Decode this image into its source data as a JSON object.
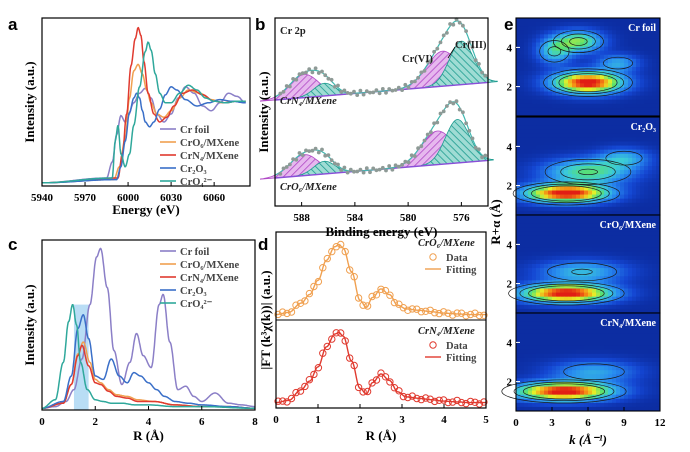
{
  "chart_data": [
    {
      "panel": "a",
      "type": "line",
      "xlabel": "Energy (eV)",
      "ylabel": "Intensity (a.u.)",
      "xlim": [
        5940,
        6085
      ],
      "xticks": [
        5940,
        5970,
        6000,
        6030,
        6060
      ],
      "legend_position": "bottom-right",
      "series": [
        {
          "name": "Cr foil",
          "color": "#8B7FC7",
          "x": [
            5940,
            5985,
            5989,
            5992,
            5995,
            5998,
            6000,
            6004,
            6008,
            6012,
            6016,
            6020,
            6025,
            6030,
            6035,
            6040,
            6046,
            6052,
            6058,
            6064,
            6070,
            6076,
            6082
          ],
          "y": [
            0.02,
            0.05,
            0.15,
            0.32,
            0.44,
            0.4,
            0.44,
            0.52,
            0.58,
            0.61,
            0.55,
            0.45,
            0.4,
            0.45,
            0.55,
            0.62,
            0.58,
            0.5,
            0.47,
            0.52,
            0.58,
            0.56,
            0.52
          ]
        },
        {
          "name": "CrO₆/MXene",
          "color": "#F0A050",
          "x": [
            5940,
            5990,
            5994,
            5998,
            6001,
            6004,
            6007,
            6010,
            6013,
            6016,
            6020,
            6025,
            6030,
            6036,
            6042,
            6050,
            6058,
            6066,
            6074,
            6082
          ],
          "y": [
            0.02,
            0.04,
            0.12,
            0.3,
            0.55,
            0.72,
            0.76,
            0.7,
            0.6,
            0.52,
            0.45,
            0.43,
            0.47,
            0.55,
            0.6,
            0.58,
            0.54,
            0.52,
            0.53,
            0.53
          ]
        },
        {
          "name": "CrN₄/MXene",
          "color": "#E03A2F",
          "x": [
            5940,
            5993,
            5996,
            5999,
            6002,
            6005,
            6007,
            6009,
            6011,
            6014,
            6018,
            6022,
            6027,
            6032,
            6038,
            6045,
            6052,
            6060,
            6068,
            6076,
            6082
          ],
          "y": [
            0.02,
            0.05,
            0.2,
            0.45,
            0.75,
            0.92,
            0.99,
            0.94,
            0.78,
            0.58,
            0.45,
            0.4,
            0.43,
            0.5,
            0.58,
            0.6,
            0.57,
            0.53,
            0.52,
            0.53,
            0.53
          ]
        },
        {
          "name": "Cr₂O₃",
          "color": "#3A6FC8",
          "x": [
            5940,
            5992,
            5995,
            5998,
            6001,
            6004,
            6006,
            6008,
            6010,
            6012,
            6015,
            6018,
            6022,
            6026,
            6030,
            6034,
            6040,
            6048,
            6056,
            6064,
            6072,
            6082
          ],
          "y": [
            0.02,
            0.04,
            0.12,
            0.28,
            0.46,
            0.55,
            0.58,
            0.55,
            0.47,
            0.4,
            0.37,
            0.4,
            0.48,
            0.57,
            0.62,
            0.6,
            0.54,
            0.5,
            0.52,
            0.54,
            0.53,
            0.52
          ]
        },
        {
          "name": "CrO₄²⁻",
          "color": "#2FA89B",
          "x": [
            5940,
            5989,
            5991,
            5993,
            5995,
            5998,
            6001,
            6004,
            6008,
            6012,
            6014,
            6016,
            6019,
            6022,
            6026,
            6030,
            6036,
            6042,
            6048,
            6054,
            6060,
            6068,
            6076,
            6082
          ],
          "y": [
            0.02,
            0.05,
            0.28,
            0.38,
            0.2,
            0.12,
            0.2,
            0.38,
            0.62,
            0.84,
            0.9,
            0.85,
            0.7,
            0.58,
            0.52,
            0.52,
            0.58,
            0.63,
            0.6,
            0.55,
            0.53,
            0.52,
            0.53,
            0.53
          ]
        }
      ]
    },
    {
      "panel": "b",
      "type": "area",
      "title": "Cr 2p",
      "xlabel": "Binding energy (eV)",
      "ylabel": "Intensity (a.u.)",
      "xlim": [
        590,
        574
      ],
      "xticks": [
        588,
        584,
        580,
        576
      ],
      "annotations": [
        "Cr(III)",
        "Cr(VI)"
      ],
      "subplots": [
        {
          "name": "CrN₄/MXene",
          "peaks": [
            {
              "center": 587.8,
              "height": 0.33,
              "width": 1.1
            },
            {
              "center": 586.3,
              "height": 0.18,
              "width": 0.8
            },
            {
              "center": 577.4,
              "height": 0.5,
              "width": 1.2
            },
            {
              "center": 576.0,
              "height": 0.62,
              "width": 0.9
            }
          ]
        },
        {
          "name": "CrO₆/MXene",
          "peaks": [
            {
              "center": 587.8,
              "height": 0.3,
              "width": 1.1
            },
            {
              "center": 586.3,
              "height": 0.18,
              "width": 0.8
            },
            {
              "center": 577.8,
              "height": 0.48,
              "width": 1.2
            },
            {
              "center": 576.3,
              "height": 0.62,
              "width": 0.9
            }
          ]
        }
      ]
    },
    {
      "panel": "c",
      "type": "line",
      "xlabel": "R (Å)",
      "ylabel": "Intensity (a.u.)",
      "xlim": [
        0,
        8
      ],
      "xticks": [
        0,
        2,
        4,
        6,
        8
      ],
      "legend_position": "top-right",
      "series": [
        {
          "name": "Cr foil",
          "color": "#8B7FC7",
          "x": [
            0,
            0.5,
            0.9,
            1.2,
            1.5,
            1.8,
            2.05,
            2.2,
            2.45,
            2.7,
            3.0,
            3.3,
            3.55,
            3.8,
            4.1,
            4.4,
            4.55,
            4.8,
            5.1,
            5.4,
            5.7,
            6.0,
            6.5,
            7.0,
            7.5,
            8.0
          ],
          "y": [
            0.01,
            0.02,
            0.05,
            0.12,
            0.3,
            0.62,
            0.9,
            0.95,
            0.72,
            0.35,
            0.15,
            0.28,
            0.45,
            0.32,
            0.25,
            0.62,
            0.68,
            0.4,
            0.12,
            0.14,
            0.08,
            0.05,
            0.1,
            0.04,
            0.03,
            0.02
          ]
        },
        {
          "name": "CrO₆/MXene",
          "color": "#F0A050",
          "x": [
            0,
            0.8,
            1.1,
            1.35,
            1.55,
            1.8,
            2.0,
            2.2,
            2.5,
            2.8,
            3.2,
            3.6,
            4.2,
            5.0,
            6.0,
            7.0,
            8.0
          ],
          "y": [
            0.01,
            0.04,
            0.15,
            0.33,
            0.4,
            0.28,
            0.18,
            0.16,
            0.12,
            0.09,
            0.08,
            0.06,
            0.05,
            0.03,
            0.02,
            0.02,
            0.01
          ]
        },
        {
          "name": "CrN₄/MXene",
          "color": "#E03A2F",
          "x": [
            0,
            0.8,
            1.1,
            1.35,
            1.5,
            1.75,
            2.0,
            2.2,
            2.5,
            2.8,
            3.2,
            3.6,
            4.2,
            5.0,
            6.0,
            7.0,
            8.0
          ],
          "y": [
            0.01,
            0.04,
            0.15,
            0.32,
            0.38,
            0.26,
            0.16,
            0.15,
            0.11,
            0.08,
            0.07,
            0.05,
            0.05,
            0.03,
            0.02,
            0.02,
            0.01
          ]
        },
        {
          "name": "Cr₂O₃",
          "color": "#3A6FC8",
          "x": [
            0,
            0.8,
            1.1,
            1.35,
            1.55,
            1.75,
            2.0,
            2.3,
            2.6,
            2.9,
            3.2,
            3.45,
            3.7,
            4.0,
            4.3,
            4.6,
            5.0,
            5.5,
            6.0,
            7.0,
            8.0
          ],
          "y": [
            0.01,
            0.05,
            0.2,
            0.48,
            0.56,
            0.42,
            0.2,
            0.18,
            0.3,
            0.2,
            0.16,
            0.22,
            0.2,
            0.16,
            0.12,
            0.08,
            0.05,
            0.04,
            0.03,
            0.02,
            0.01
          ]
        },
        {
          "name": "CrO₄²⁻",
          "color": "#2FA89B",
          "x": [
            0,
            0.5,
            0.8,
            1.0,
            1.15,
            1.3,
            1.45,
            1.7,
            2.0,
            2.3,
            2.6,
            3.0,
            3.5,
            4.0,
            5.0,
            6.0,
            8.0
          ],
          "y": [
            0.01,
            0.06,
            0.28,
            0.52,
            0.62,
            0.5,
            0.28,
            0.12,
            0.06,
            0.05,
            0.04,
            0.04,
            0.03,
            0.03,
            0.02,
            0.02,
            0.01
          ]
        }
      ]
    },
    {
      "panel": "d",
      "type": "line",
      "xlabel": "R (Å)",
      "ylabel": "|FT (k³χ(k))| (a.u.)",
      "xlim": [
        0,
        5
      ],
      "xticks": [
        0,
        1,
        2,
        3,
        4,
        5
      ],
      "subplots": [
        {
          "name": "CrO₆/MXene",
          "legend": [
            "Data",
            "Fitting"
          ],
          "color": "#F0A050",
          "x": [
            0,
            0.3,
            0.6,
            0.8,
            1.0,
            1.2,
            1.4,
            1.5,
            1.6,
            1.8,
            2.0,
            2.15,
            2.3,
            2.5,
            2.7,
            2.9,
            3.1,
            3.4,
            3.7,
            4.0,
            4.3,
            4.6,
            5.0
          ],
          "y": [
            0.02,
            0.05,
            0.18,
            0.3,
            0.5,
            0.78,
            0.97,
            1.0,
            0.95,
            0.62,
            0.22,
            0.12,
            0.26,
            0.38,
            0.3,
            0.15,
            0.1,
            0.08,
            0.06,
            0.04,
            0.03,
            0.02,
            0.02
          ]
        },
        {
          "name": "CrN₄/MXene",
          "legend": [
            "Data",
            "Fitting"
          ],
          "color": "#E03A2F",
          "x": [
            0,
            0.3,
            0.6,
            0.8,
            1.0,
            1.2,
            1.4,
            1.5,
            1.6,
            1.8,
            2.0,
            2.15,
            2.3,
            2.5,
            2.7,
            2.9,
            3.1,
            3.4,
            3.7,
            4.0,
            4.3,
            4.6,
            5.0
          ],
          "y": [
            0.02,
            0.05,
            0.2,
            0.32,
            0.52,
            0.8,
            0.98,
            1.0,
            0.95,
            0.6,
            0.22,
            0.14,
            0.3,
            0.42,
            0.33,
            0.17,
            0.1,
            0.08,
            0.06,
            0.04,
            0.03,
            0.02,
            0.02
          ]
        }
      ]
    },
    {
      "panel": "e",
      "type": "heatmap",
      "xlabel": "k (Å⁻¹)",
      "ylabel": "R+α (Å)",
      "xlim": [
        0,
        12
      ],
      "xticks": [
        0,
        3,
        6,
        9,
        12
      ],
      "ylim": [
        0.5,
        5.5
      ],
      "yticks": [
        2,
        4
      ],
      "maps": [
        {
          "name": "Cr foil",
          "peaks": [
            {
              "k": 6.0,
              "r": 2.2,
              "amp": 1.0,
              "sk": 2.0,
              "sr": 0.38
            },
            {
              "k": 5.2,
              "r": 4.3,
              "amp": 0.55,
              "sk": 1.4,
              "sr": 0.38
            },
            {
              "k": 3.2,
              "r": 3.8,
              "amp": 0.38,
              "sk": 1.0,
              "sr": 0.45
            },
            {
              "k": 8.5,
              "r": 3.2,
              "amp": 0.3,
              "sk": 1.2,
              "sr": 0.3
            }
          ]
        },
        {
          "name": "Cr₂O₃",
          "peaks": [
            {
              "k": 4.2,
              "r": 1.6,
              "amp": 1.0,
              "sk": 2.4,
              "sr": 0.32
            },
            {
              "k": 6.0,
              "r": 2.7,
              "amp": 0.5,
              "sk": 2.5,
              "sr": 0.45
            },
            {
              "k": 9.0,
              "r": 3.4,
              "amp": 0.3,
              "sk": 1.5,
              "sr": 0.35
            }
          ]
        },
        {
          "name": "CrO₆/MXene",
          "peaks": [
            {
              "k": 4.2,
              "r": 1.5,
              "amp": 1.0,
              "sk": 2.6,
              "sr": 0.32
            },
            {
              "k": 5.5,
              "r": 2.6,
              "amp": 0.35,
              "sk": 2.5,
              "sr": 0.4
            }
          ]
        },
        {
          "name": "CrN₄/MXene",
          "peaks": [
            {
              "k": 4.0,
              "r": 1.5,
              "amp": 1.0,
              "sk": 2.8,
              "sr": 0.32
            },
            {
              "k": 6.5,
              "r": 2.5,
              "amp": 0.3,
              "sk": 2.5,
              "sr": 0.4
            }
          ]
        }
      ]
    }
  ],
  "panel_labels": [
    "a",
    "b",
    "c",
    "d",
    "e"
  ]
}
